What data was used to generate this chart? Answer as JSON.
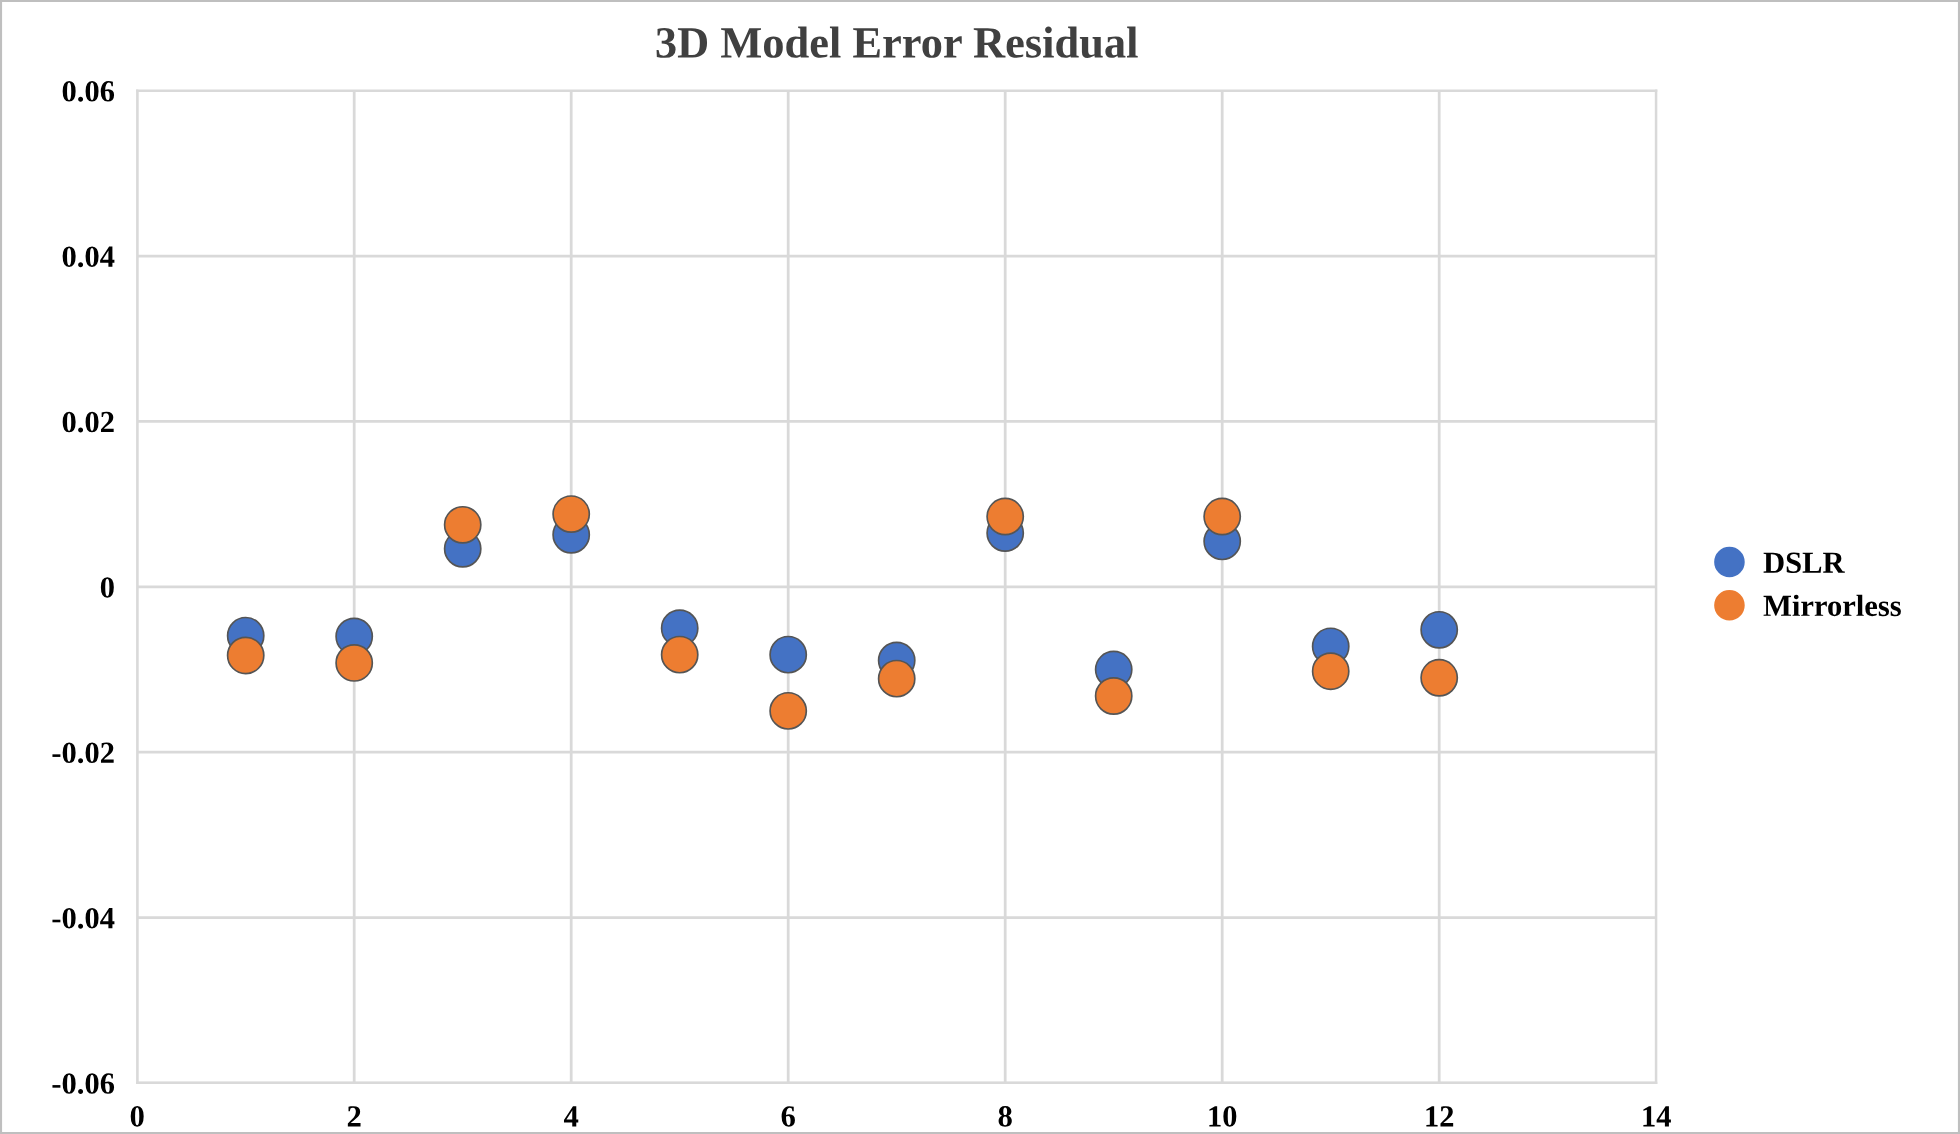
{
  "chart_data": {
    "type": "scatter",
    "title": "3D Model Error Residual",
    "x": [
      1,
      2,
      3,
      4,
      5,
      6,
      7,
      8,
      9,
      10,
      11,
      12
    ],
    "series": [
      {
        "name": "DSLR",
        "color": "#4472c4",
        "values": [
          -0.0059,
          -0.006,
          0.0046,
          0.0063,
          -0.005,
          -0.0082,
          -0.0089,
          0.0065,
          -0.01,
          0.0055,
          -0.0072,
          -0.0052
        ]
      },
      {
        "name": "Mirrorless",
        "color": "#ed7d31",
        "values": [
          -0.0083,
          -0.0092,
          0.0075,
          0.0088,
          -0.0082,
          -0.015,
          -0.0111,
          0.0085,
          -0.0132,
          0.0085,
          -0.0102,
          -0.011
        ]
      }
    ],
    "xlim": [
      0,
      14
    ],
    "xticks": [
      0,
      2,
      4,
      6,
      8,
      10,
      12,
      14
    ],
    "ylim": [
      -0.06,
      0.06
    ],
    "yticks": [
      {
        "value": -0.06,
        "label": "-0.06"
      },
      {
        "value": -0.04,
        "label": "-0.04"
      },
      {
        "value": -0.02,
        "label": "-0.02"
      },
      {
        "value": 0,
        "label": "0"
      },
      {
        "value": 0.02,
        "label": "0.02"
      },
      {
        "value": 0.04,
        "label": "0.04"
      },
      {
        "value": 0.06,
        "label": "0.06"
      }
    ],
    "grid": true,
    "legend": "right",
    "marker": "circle"
  }
}
